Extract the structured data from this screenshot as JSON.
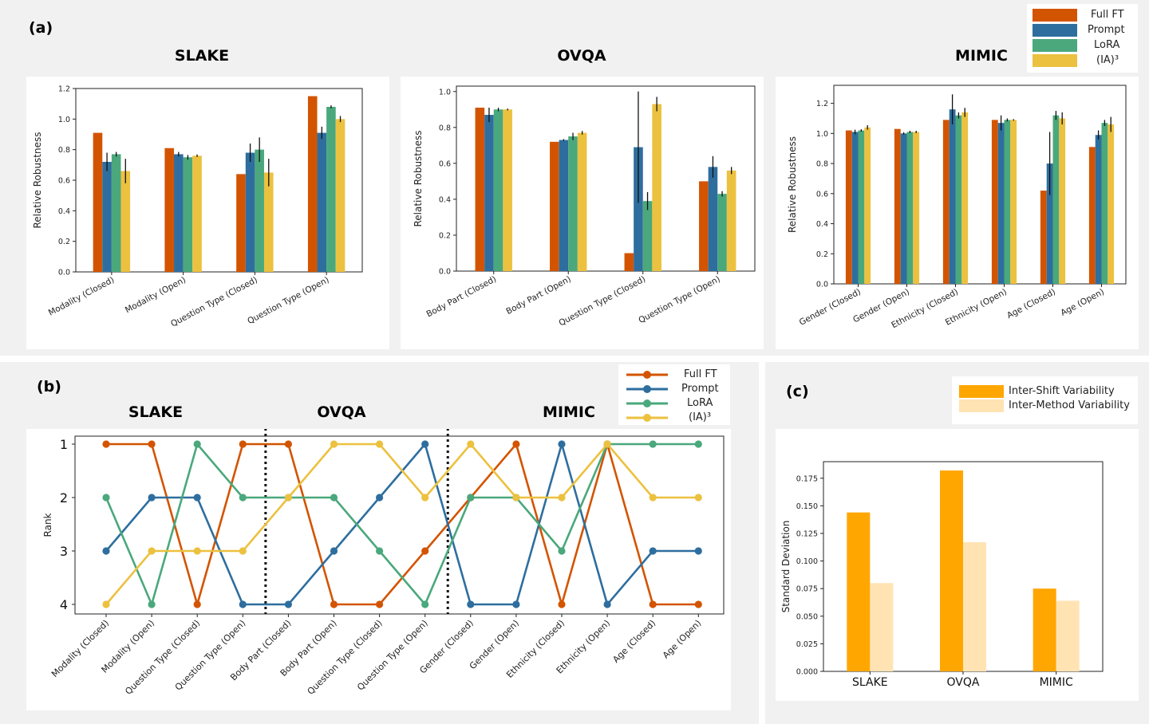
{
  "colors": {
    "full_ft": "#d35400",
    "prompt": "#2e6e9e",
    "lora": "#4aa87c",
    "ia3": "#ecc13f",
    "inter_shift": "#ffa600",
    "inter_method": "#ffe3b3"
  },
  "panel_a": {
    "label": "(a)",
    "legend": [
      "Full FT",
      "Prompt",
      "LoRA",
      "(IA)³"
    ]
  },
  "panel_b": {
    "label": "(b)",
    "section_titles": [
      "SLAKE",
      "OVQA",
      "MIMIC"
    ],
    "legend": [
      "Full FT",
      "Prompt",
      "LoRA",
      "(IA)³"
    ]
  },
  "panel_c": {
    "label": "(c)",
    "legend": [
      "Inter-Shift Variability",
      "Inter-Method Variability"
    ]
  },
  "chart_data": [
    {
      "type": "bar",
      "title": "SLAKE",
      "ylabel": "Relative Robustness",
      "ylim": [
        0,
        1.2
      ],
      "yticks": [
        "0.0",
        "0.2",
        "0.4",
        "0.6",
        "0.8",
        "1.0",
        "1.2"
      ],
      "categories": [
        "Modality (Closed)",
        "Modality (Open)",
        "Question Type (Closed)",
        "Question Type (Open)"
      ],
      "series": [
        {
          "name": "Full FT",
          "values": [
            0.91,
            0.81,
            0.64,
            1.15
          ],
          "err": [
            0,
            0,
            0,
            0
          ]
        },
        {
          "name": "Prompt",
          "values": [
            0.72,
            0.77,
            0.78,
            0.91
          ],
          "err": [
            0.06,
            0.015,
            0.06,
            0.04
          ]
        },
        {
          "name": "LoRA",
          "values": [
            0.77,
            0.75,
            0.8,
            1.08
          ],
          "err": [
            0.015,
            0.015,
            0.08,
            0.01
          ]
        },
        {
          "name": "(IA)³",
          "values": [
            0.66,
            0.76,
            0.65,
            1.0
          ],
          "err": [
            0.08,
            0.008,
            0.09,
            0.02
          ]
        }
      ]
    },
    {
      "type": "bar",
      "title": "OVQA",
      "ylabel": "Relative Robustness",
      "ylim": [
        0,
        1.03
      ],
      "yticks": [
        "0.0",
        "0.2",
        "0.4",
        "0.6",
        "0.8",
        "1.0"
      ],
      "categories": [
        "Body Part (Closed)",
        "Body Part (Open)",
        "Question Type (Closed)",
        "Question Type (Open)"
      ],
      "series": [
        {
          "name": "Full FT",
          "values": [
            0.91,
            0.72,
            0.1,
            0.5
          ],
          "err": [
            0,
            0,
            0,
            0
          ]
        },
        {
          "name": "Prompt",
          "values": [
            0.87,
            0.73,
            0.69,
            0.58
          ],
          "err": [
            0.04,
            0.005,
            0.31,
            0.06
          ]
        },
        {
          "name": "LoRA",
          "values": [
            0.9,
            0.75,
            0.39,
            0.43
          ],
          "err": [
            0.01,
            0.02,
            0.05,
            0.015
          ]
        },
        {
          "name": "(IA)³",
          "values": [
            0.9,
            0.77,
            0.93,
            0.56
          ],
          "err": [
            0.005,
            0.01,
            0.04,
            0.02
          ]
        }
      ]
    },
    {
      "type": "bar",
      "title": "MIMIC",
      "ylabel": "Relative Robustness",
      "ylim": [
        0,
        1.32
      ],
      "yticks": [
        "0.0",
        "0.2",
        "0.4",
        "0.6",
        "0.8",
        "1.0",
        "1.2"
      ],
      "categories": [
        "Gender (Closed)",
        "Gender (Open)",
        "Ethnicity (Closed)",
        "Ethnicity (Open)",
        "Age (Closed)",
        "Age (Open)"
      ],
      "series": [
        {
          "name": "Full FT",
          "values": [
            1.02,
            1.03,
            1.09,
            1.09,
            0.62,
            0.91
          ],
          "err": [
            0,
            0,
            0,
            0,
            0,
            0
          ]
        },
        {
          "name": "Prompt",
          "values": [
            1.01,
            1.0,
            1.16,
            1.07,
            0.8,
            0.99
          ],
          "err": [
            0.015,
            0.008,
            0.1,
            0.05,
            0.21,
            0.03
          ]
        },
        {
          "name": "LoRA",
          "values": [
            1.02,
            1.01,
            1.12,
            1.09,
            1.12,
            1.07
          ],
          "err": [
            0.008,
            0.008,
            0.02,
            0.01,
            0.03,
            0.02
          ]
        },
        {
          "name": "(IA)³",
          "values": [
            1.04,
            1.01,
            1.14,
            1.09,
            1.1,
            1.06
          ],
          "err": [
            0.015,
            0.008,
            0.03,
            0.005,
            0.04,
            0.05
          ]
        }
      ]
    },
    {
      "type": "line",
      "ylabel": "Rank",
      "ylim": [
        4,
        1
      ],
      "yticks": [
        "1",
        "2",
        "3",
        "4"
      ],
      "categories": [
        "Modality (Closed)",
        "Modality (Open)",
        "Question Type (Closed)",
        "Question Type (Open)",
        "Body Part (Closed)",
        "Body Part (Open)",
        "Question Type (Closed)",
        "Question Type (Open)",
        "Gender (Closed)",
        "Gender (Open)",
        "Ethnicity (Closed)",
        "Ethnicity (Open)",
        "Age (Closed)",
        "Age (Open)"
      ],
      "series": [
        {
          "name": "Full FT",
          "values": [
            1,
            1,
            4,
            1,
            1,
            4,
            4,
            3,
            2,
            1,
            4,
            1,
            4,
            4
          ]
        },
        {
          "name": "Prompt",
          "values": [
            3,
            2,
            2,
            4,
            4,
            3,
            2,
            1,
            4,
            4,
            1,
            4,
            3,
            3
          ]
        },
        {
          "name": "LoRA",
          "values": [
            2,
            4,
            1,
            2,
            2,
            2,
            3,
            4,
            2,
            2,
            3,
            1,
            1,
            1
          ]
        },
        {
          "name": "(IA)³",
          "values": [
            4,
            3,
            3,
            3,
            2,
            1,
            1,
            2,
            1,
            2,
            2,
            1,
            2,
            2
          ]
        }
      ]
    },
    {
      "type": "bar",
      "ylabel": "Standard Deviation",
      "ylim": [
        0,
        0.19
      ],
      "yticks": [
        "0.000",
        "0.025",
        "0.050",
        "0.075",
        "0.100",
        "0.125",
        "0.150",
        "0.175"
      ],
      "categories": [
        "SLAKE",
        "OVQA",
        "MIMIC"
      ],
      "series": [
        {
          "name": "Inter-Shift Variability",
          "values": [
            0.144,
            0.182,
            0.075
          ]
        },
        {
          "name": "Inter-Method Variability",
          "values": [
            0.08,
            0.117,
            0.064
          ]
        }
      ]
    }
  ]
}
